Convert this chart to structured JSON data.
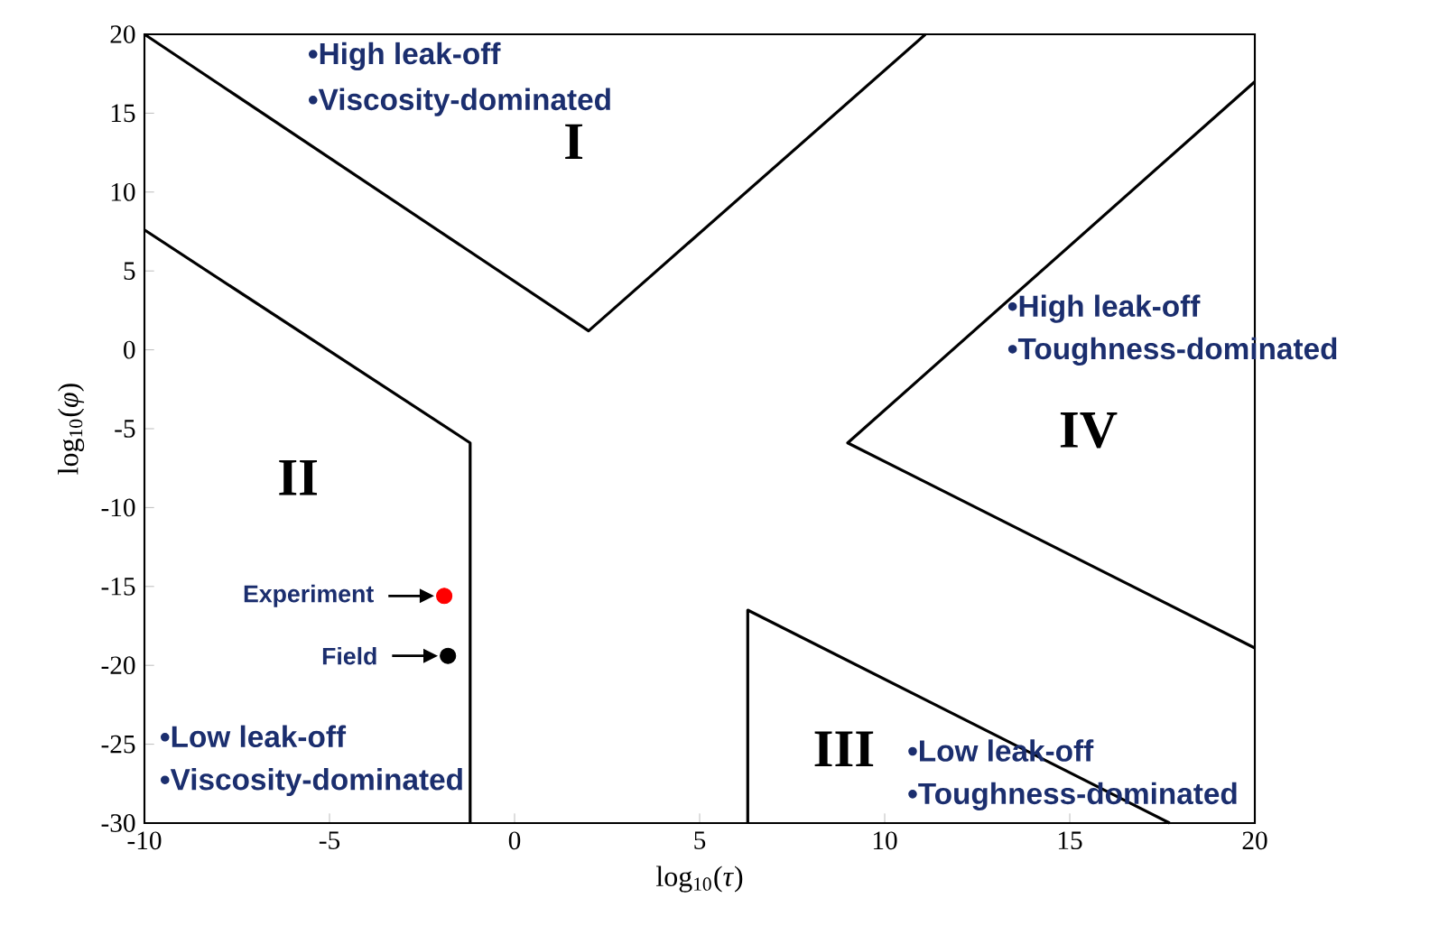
{
  "chart_data": {
    "type": "line",
    "xlabel": "log$_{10}$(*τ*)",
    "ylabel": "log$_{10}$(*φ*)",
    "xlim": [
      -10,
      20
    ],
    "ylim": [
      -30,
      20
    ],
    "xticks": [
      -10,
      -5,
      0,
      5,
      10,
      15,
      20
    ],
    "yticks": [
      -30,
      -25,
      -20,
      -15,
      -10,
      -5,
      0,
      5,
      10,
      15,
      20
    ],
    "series": [
      {
        "color": "#000000",
        "x": [
          -10,
          2,
          11.1
        ],
        "values": [
          20,
          1.2,
          20
        ]
      },
      {
        "color": "#000000",
        "x": [
          -10,
          -1.2,
          -1.2
        ],
        "values": [
          7.6,
          -5.9,
          -30
        ]
      },
      {
        "color": "#000000",
        "x": [
          20,
          9,
          20
        ],
        "values": [
          17,
          -5.9,
          -18.9
        ]
      },
      {
        "color": "#000000",
        "x": [
          6.3,
          6.3,
          17.7
        ],
        "values": [
          -30,
          -16.5,
          -30
        ]
      },
      {
        "type": "scatter",
        "color": "#ff0000",
        "x": [
          -1.9
        ],
        "values": [
          -15.6
        ]
      },
      {
        "type": "scatter",
        "color": "#000000",
        "x": [
          -1.8
        ],
        "values": [
          -19.4
        ]
      }
    ],
    "annotations": [
      "I",
      "II",
      "III",
      "IV",
      "•High leak-off",
      "•Viscosity-dominated",
      "•High leak-off",
      "•Toughness-dominated",
      "•Low leak-off",
      "•Viscosity-dominated",
      "•Low leak-off",
      "•Toughness-dominated",
      {
        "text": "Experiment",
        "x": -1.9,
        "y": -15.6
      },
      {
        "text": "Field",
        "x": -1.8,
        "y": -19.4
      }
    ]
  }
}
